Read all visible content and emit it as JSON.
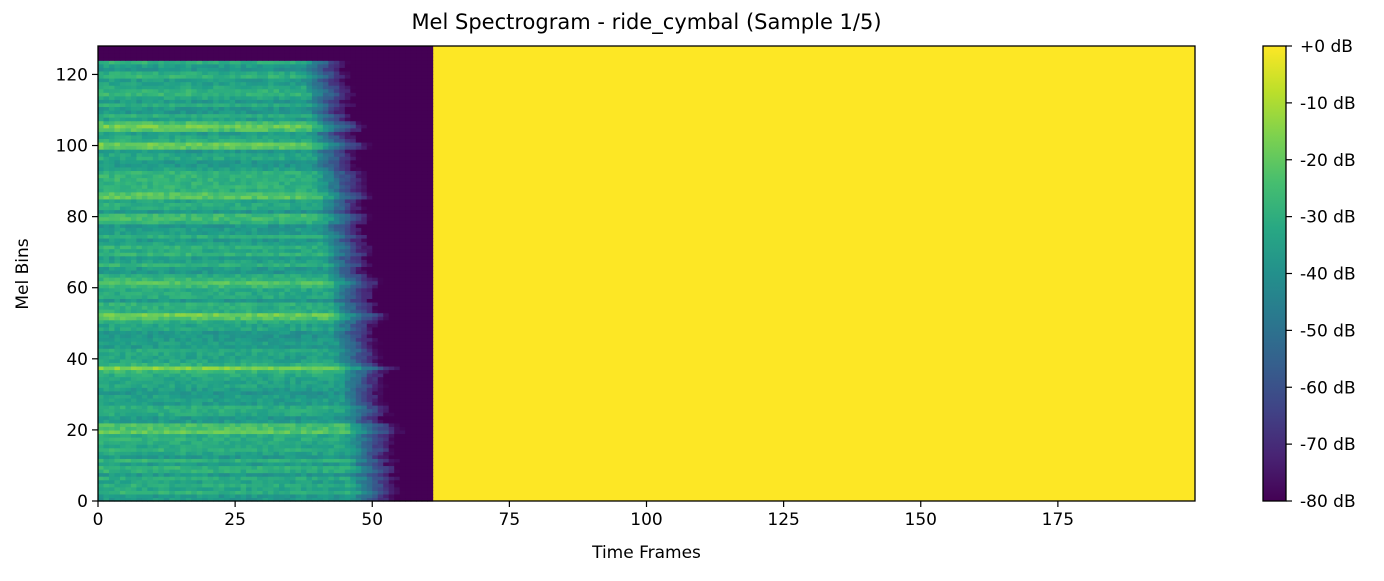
{
  "chart_data": {
    "type": "heatmap",
    "title": "Mel Spectrogram - ride_cymbal (Sample 1/5)",
    "xlabel": "Time Frames",
    "ylabel": "Mel Bins",
    "xlim": [
      0,
      200
    ],
    "ylim": [
      0,
      128
    ],
    "x_ticks": [
      0,
      25,
      50,
      75,
      100,
      125,
      150,
      175
    ],
    "y_ticks": [
      0,
      20,
      40,
      60,
      80,
      100,
      120
    ],
    "n_time_frames": 200,
    "n_mel_bins": 128,
    "colormap": "viridis",
    "colorbar": {
      "range_db": [
        -80,
        0
      ],
      "ticks": [
        0,
        -10,
        -20,
        -30,
        -40,
        -50,
        -60,
        -70,
        -80
      ],
      "tick_labels": [
        "+0 dB",
        "-10 dB",
        "-20 dB",
        "-30 dB",
        "-40 dB",
        "-50 dB",
        "-60 dB",
        "-70 dB",
        "-80 dB"
      ]
    },
    "regions": {
      "signal_frames": [
        0,
        61
      ],
      "padding_frames": [
        61,
        200
      ],
      "padding_value_db": 0,
      "silence_value_db": -80,
      "top_silent_bin_start": 124,
      "signal_base_db": -32,
      "bright_bins": [
        20,
        37,
        52,
        61,
        79,
        86,
        100,
        105
      ]
    }
  }
}
